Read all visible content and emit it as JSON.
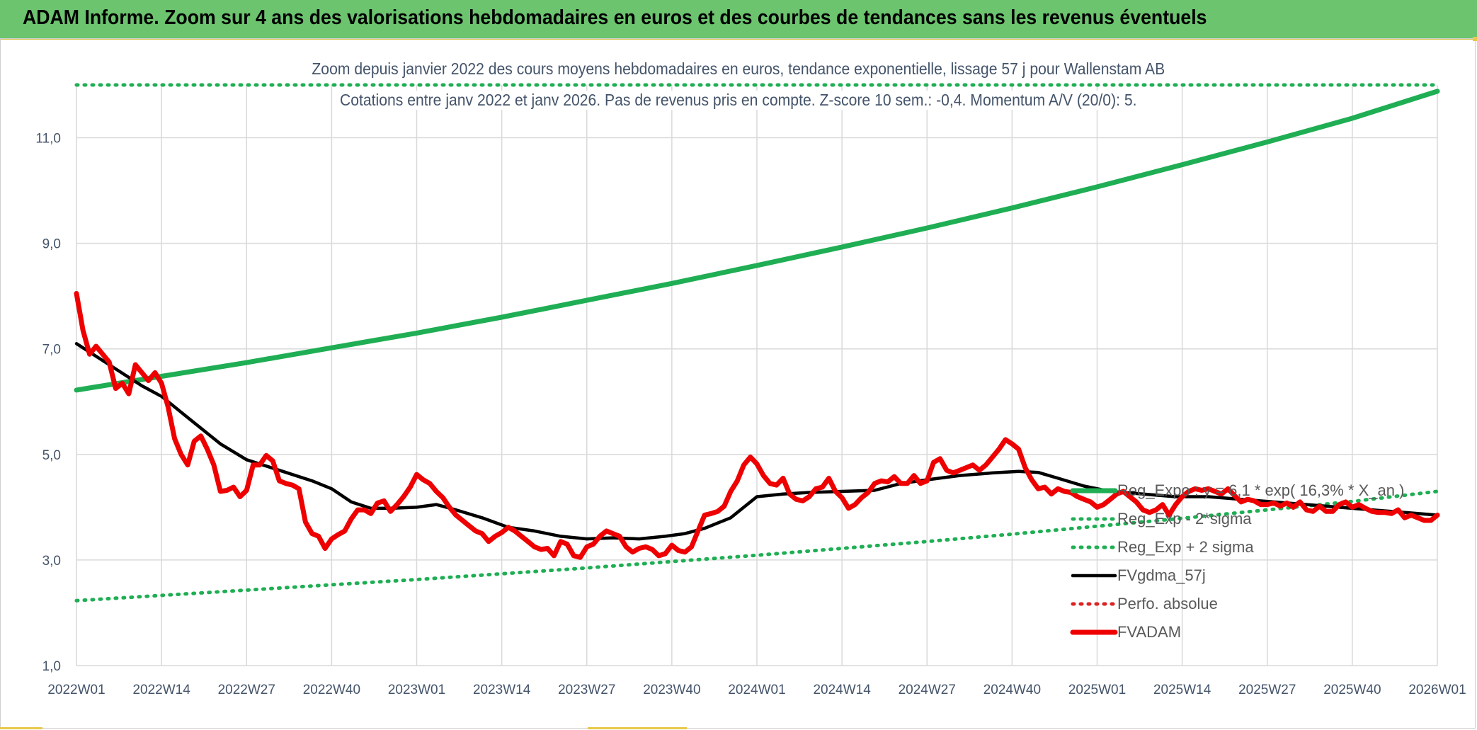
{
  "banner": {
    "title": "ADAM Informe. Zoom sur 4 ans des valorisations hebdomadaires en euros et des courbes de tendances sans les revenus éventuels"
  },
  "colors": {
    "banner_bg": "#6cc46f",
    "trend_green": "#1fae54",
    "price_red": "#ee0000",
    "smoothing_black": "#000000",
    "perf_red": "#dd2222",
    "title_text": "#44546a",
    "grid": "#d9d9d9"
  },
  "chart_data": {
    "type": "line",
    "title": "Zoom depuis janvier 2022 des cours moyens hebdomadaires en euros, tendance exponentielle, lissage 57 j pour Wallenstam AB",
    "subtitle": "Cotations entre janv 2022 et janv 2026. Pas de revenus pris en compte. Z-score 10 sem.: -0,4. Momentum A/V (20/0): 5.",
    "xlabel": "",
    "ylabel": "",
    "ylim": [
      1.0,
      12.0
    ],
    "y_ticks": [
      "1,0",
      "3,0",
      "5,0",
      "7,0",
      "9,0",
      "11,0"
    ],
    "x_ticks": [
      "2022W01",
      "2022W14",
      "2022W27",
      "2022W40",
      "2023W01",
      "2023W14",
      "2023W27",
      "2023W40",
      "2024W01",
      "2024W14",
      "2024W27",
      "2024W40",
      "2025W01",
      "2025W14",
      "2025W27",
      "2025W40",
      "2026W01"
    ],
    "x_unit": "weeks since 2022W01 (13 weeks per tick interval)",
    "grid": true,
    "legend_position": "right",
    "series": [
      {
        "name": "Reg_Expo : y = 6,1 * exp( 16,3% * X_an )",
        "style": "solid-thick",
        "color": "#1fae54",
        "x": [
          0,
          13,
          26,
          39,
          52,
          65,
          78,
          91,
          104,
          117,
          130,
          143,
          156,
          169,
          182,
          195,
          208
        ],
        "y": [
          6.22,
          6.48,
          6.74,
          7.02,
          7.3,
          7.6,
          7.92,
          8.24,
          8.58,
          8.93,
          9.29,
          9.67,
          10.07,
          10.49,
          10.92,
          11.37,
          11.88
        ]
      },
      {
        "name": "Reg_Exp - 2*sigma",
        "style": "dotted",
        "color": "#1fae54",
        "x": [
          0,
          13,
          26,
          39,
          52,
          65,
          78,
          91,
          104,
          117,
          130,
          143,
          156,
          169,
          182,
          195,
          208
        ],
        "y": [
          2.23,
          2.33,
          2.43,
          2.53,
          2.63,
          2.74,
          2.85,
          2.97,
          3.09,
          3.22,
          3.35,
          3.49,
          3.64,
          3.79,
          3.95,
          4.11,
          4.3
        ]
      },
      {
        "name": "Reg_Exp + 2 sigma",
        "style": "dotted",
        "color": "#1fae54",
        "x": [
          0,
          208
        ],
        "y": [
          12.0,
          12.0
        ]
      },
      {
        "name": "FVgdma_57j",
        "style": "solid",
        "color": "#000000",
        "x": [
          0,
          5,
          10,
          13,
          18,
          22,
          26,
          31,
          36,
          39,
          42,
          45,
          48,
          52,
          55,
          58,
          62,
          66,
          70,
          74,
          78,
          82,
          86,
          90,
          93,
          96,
          100,
          104,
          108,
          112,
          117,
          122,
          126,
          130,
          135,
          140,
          144,
          147,
          150,
          154,
          158,
          163,
          168,
          173,
          178,
          183,
          188,
          193,
          198,
          203,
          208
        ],
        "y": [
          7.1,
          6.7,
          6.3,
          6.1,
          5.6,
          5.2,
          4.9,
          4.7,
          4.5,
          4.35,
          4.1,
          3.98,
          3.98,
          4.0,
          4.05,
          3.95,
          3.8,
          3.62,
          3.55,
          3.45,
          3.4,
          3.42,
          3.4,
          3.45,
          3.5,
          3.6,
          3.8,
          4.2,
          4.25,
          4.28,
          4.3,
          4.32,
          4.45,
          4.52,
          4.6,
          4.65,
          4.68,
          4.66,
          4.55,
          4.4,
          4.3,
          4.25,
          4.2,
          4.2,
          4.15,
          4.1,
          4.05,
          4.0,
          3.95,
          3.9,
          3.85
        ]
      },
      {
        "name": "Perfo. absolue",
        "style": "dotted",
        "color": "#dd2222",
        "x": [],
        "y": []
      },
      {
        "name": "FVADAM",
        "style": "solid-thick",
        "color": "#ee0000",
        "x": [
          0,
          1,
          2,
          3,
          4,
          5,
          6,
          7,
          8,
          9,
          10,
          11,
          12,
          13,
          14,
          15,
          16,
          17,
          18,
          19,
          20,
          21,
          22,
          23,
          24,
          25,
          26,
          27,
          28,
          29,
          30,
          31,
          32,
          33,
          34,
          35,
          36,
          37,
          38,
          39,
          40,
          41,
          42,
          43,
          44,
          45,
          46,
          47,
          48,
          49,
          50,
          51,
          52,
          53,
          54,
          55,
          56,
          57,
          58,
          59,
          60,
          61,
          62,
          63,
          64,
          65,
          66,
          67,
          68,
          69,
          70,
          71,
          72,
          73,
          74,
          75,
          76,
          77,
          78,
          79,
          80,
          81,
          82,
          83,
          84,
          85,
          86,
          87,
          88,
          89,
          90,
          91,
          92,
          93,
          94,
          95,
          96,
          97,
          98,
          99,
          100,
          101,
          102,
          103,
          104,
          105,
          106,
          107,
          108,
          109,
          110,
          111,
          112,
          113,
          114,
          115,
          116,
          117,
          118,
          119,
          120,
          121,
          122,
          123,
          124,
          125,
          126,
          127,
          128,
          129,
          130,
          131,
          132,
          133,
          134,
          135,
          136,
          137,
          138,
          139,
          140,
          141,
          142,
          143,
          144,
          145,
          146,
          147,
          148,
          149,
          150,
          151,
          152,
          153,
          154,
          155,
          156,
          157,
          158,
          159,
          160,
          161,
          162,
          163,
          164,
          165,
          166,
          167,
          168,
          169,
          170,
          171,
          172,
          173,
          174,
          175,
          176,
          177,
          178,
          179,
          180,
          181,
          182,
          183,
          184,
          185,
          186,
          187,
          188,
          189,
          190,
          191,
          192,
          193,
          194,
          195,
          196,
          197,
          198,
          199,
          200,
          201,
          202,
          203,
          204,
          205,
          206,
          207,
          208
        ],
        "y": [
          8.05,
          7.35,
          6.9,
          7.05,
          6.9,
          6.75,
          6.25,
          6.35,
          6.15,
          6.7,
          6.55,
          6.4,
          6.55,
          6.35,
          5.9,
          5.3,
          5.0,
          4.8,
          5.25,
          5.35,
          5.1,
          4.8,
          4.3,
          4.32,
          4.38,
          4.2,
          4.32,
          4.8,
          4.8,
          4.98,
          4.88,
          4.5,
          4.45,
          4.42,
          4.35,
          3.72,
          3.5,
          3.45,
          3.22,
          3.4,
          3.48,
          3.55,
          3.78,
          3.95,
          3.95,
          3.88,
          4.08,
          4.12,
          3.92,
          4.05,
          4.2,
          4.38,
          4.62,
          4.52,
          4.45,
          4.3,
          4.18,
          4.0,
          3.85,
          3.75,
          3.65,
          3.55,
          3.5,
          3.35,
          3.45,
          3.52,
          3.62,
          3.55,
          3.45,
          3.35,
          3.25,
          3.2,
          3.22,
          3.08,
          3.35,
          3.3,
          3.08,
          3.05,
          3.25,
          3.3,
          3.45,
          3.55,
          3.5,
          3.45,
          3.25,
          3.15,
          3.22,
          3.25,
          3.2,
          3.08,
          3.12,
          3.28,
          3.18,
          3.15,
          3.25,
          3.55,
          3.85,
          3.88,
          3.92,
          4.02,
          4.3,
          4.5,
          4.8,
          4.95,
          4.82,
          4.6,
          4.45,
          4.42,
          4.55,
          4.25,
          4.15,
          4.12,
          4.2,
          4.35,
          4.38,
          4.55,
          4.3,
          4.18,
          3.98,
          4.05,
          4.18,
          4.28,
          4.45,
          4.5,
          4.48,
          4.58,
          4.45,
          4.45,
          4.6,
          4.45,
          4.5,
          4.85,
          4.92,
          4.7,
          4.65,
          4.7,
          4.75,
          4.8,
          4.7,
          4.8,
          4.95,
          5.1,
          5.28,
          5.2,
          5.1,
          4.75,
          4.52,
          4.35,
          4.38,
          4.25,
          4.35,
          4.3,
          4.28,
          4.2,
          4.15,
          4.1,
          4.0,
          4.05,
          4.15,
          4.25,
          4.3,
          4.2,
          4.1,
          3.95,
          3.9,
          3.95,
          4.05,
          3.85,
          4.05,
          4.2,
          4.3,
          4.35,
          4.32,
          4.35,
          4.3,
          4.25,
          4.35,
          4.22,
          4.1,
          4.15,
          4.12,
          4.05,
          4.05,
          4.08,
          4.02,
          4.08,
          4.0,
          4.1,
          3.95,
          3.92,
          4.02,
          3.92,
          3.92,
          4.05,
          4.1,
          4.0,
          4.05,
          3.98,
          3.92,
          3.9,
          3.9,
          3.88,
          3.95,
          3.8,
          3.85,
          3.8,
          3.75,
          3.75,
          3.85
        ]
      }
    ]
  }
}
